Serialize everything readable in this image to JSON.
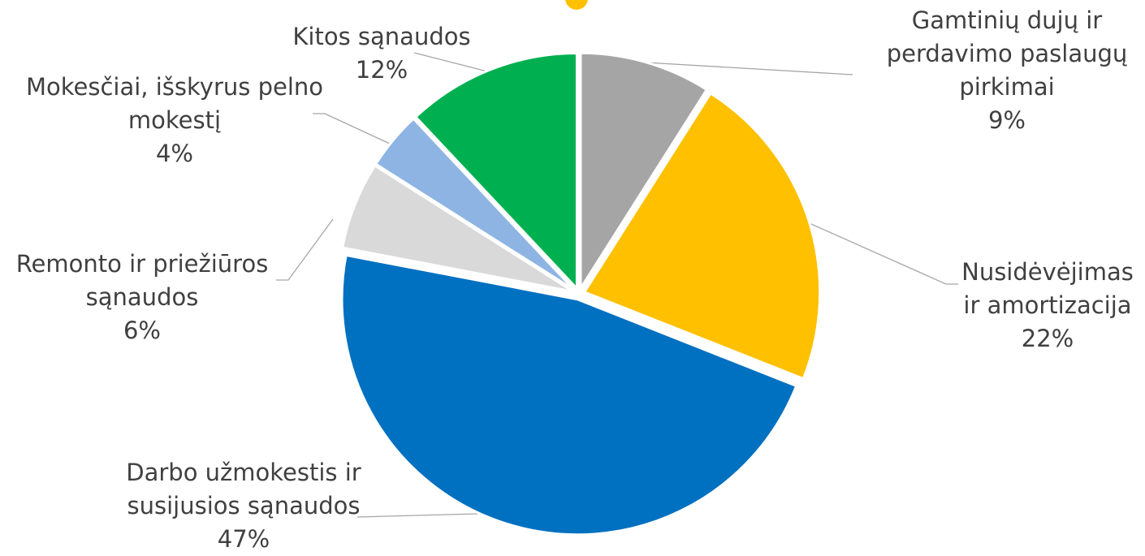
{
  "chart_data": {
    "type": "pie",
    "categories": [
      "Gamtinių dujų ir perdavimo paslaugų pirkimai",
      "Nusidėvėjimas ir amortizacija",
      "Darbo užmokestis ir susijusios sąnaudos",
      "Remonto ir priežiūros sąnaudos",
      "Mokesčiai, išskyrus pelno mokestį",
      "Kitos sąnaudos"
    ],
    "values": [
      9,
      22,
      47,
      6,
      4,
      12
    ],
    "value_labels": [
      "9%",
      "22%",
      "47%",
      "6%",
      "4%",
      "12%"
    ],
    "colors": [
      "#a5a5a5",
      "#ffc000",
      "#0070c0",
      "#d9d9d9",
      "#8eb4e3",
      "#00b050"
    ]
  }
}
